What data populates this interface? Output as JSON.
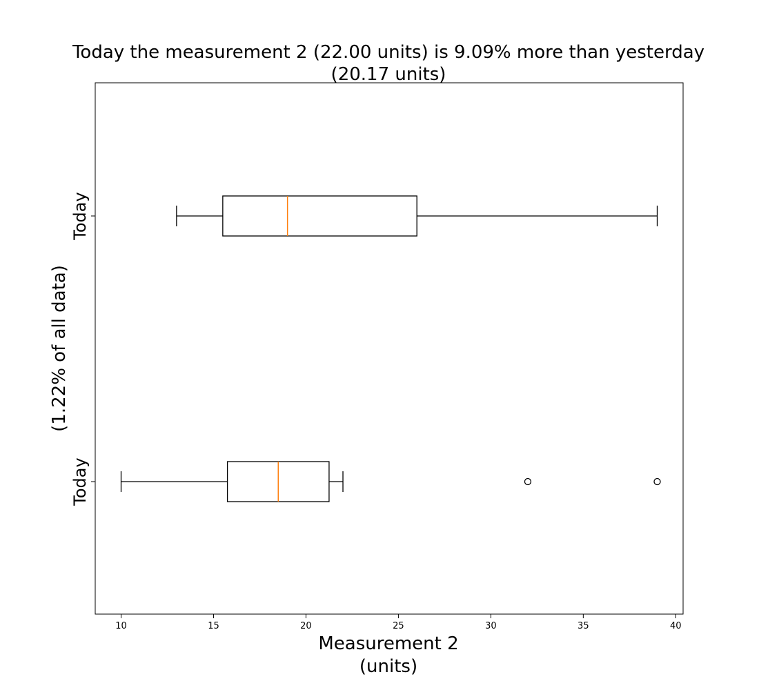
{
  "chart_data": {
    "type": "boxplot",
    "orientation": "horizontal",
    "title_lines": [
      "Today the measurement 2 (22.00 units) is 9.09% more than yesterday",
      "(20.17 units)"
    ],
    "xlabel_lines": [
      "Measurement 2",
      "(units)"
    ],
    "ylabel": "(1.22% of all data)",
    "xlim": [
      8.6,
      40.4
    ],
    "x_ticks": [
      10,
      15,
      20,
      25,
      30,
      35,
      40
    ],
    "boxes": [
      {
        "category": "Today",
        "whisker_low": 13.0,
        "q1": 15.5,
        "median": 19.0,
        "q3": 26.0,
        "whisker_high": 39.0,
        "outliers": []
      },
      {
        "category": "Today",
        "whisker_low": 10.0,
        "q1": 15.75,
        "median": 18.5,
        "q3": 21.25,
        "whisker_high": 22.0,
        "outliers": [
          32.0,
          39.0
        ]
      }
    ],
    "colors": {
      "box": "#000000",
      "median": "#ff7f0e"
    },
    "grid": false,
    "legend": "none"
  }
}
